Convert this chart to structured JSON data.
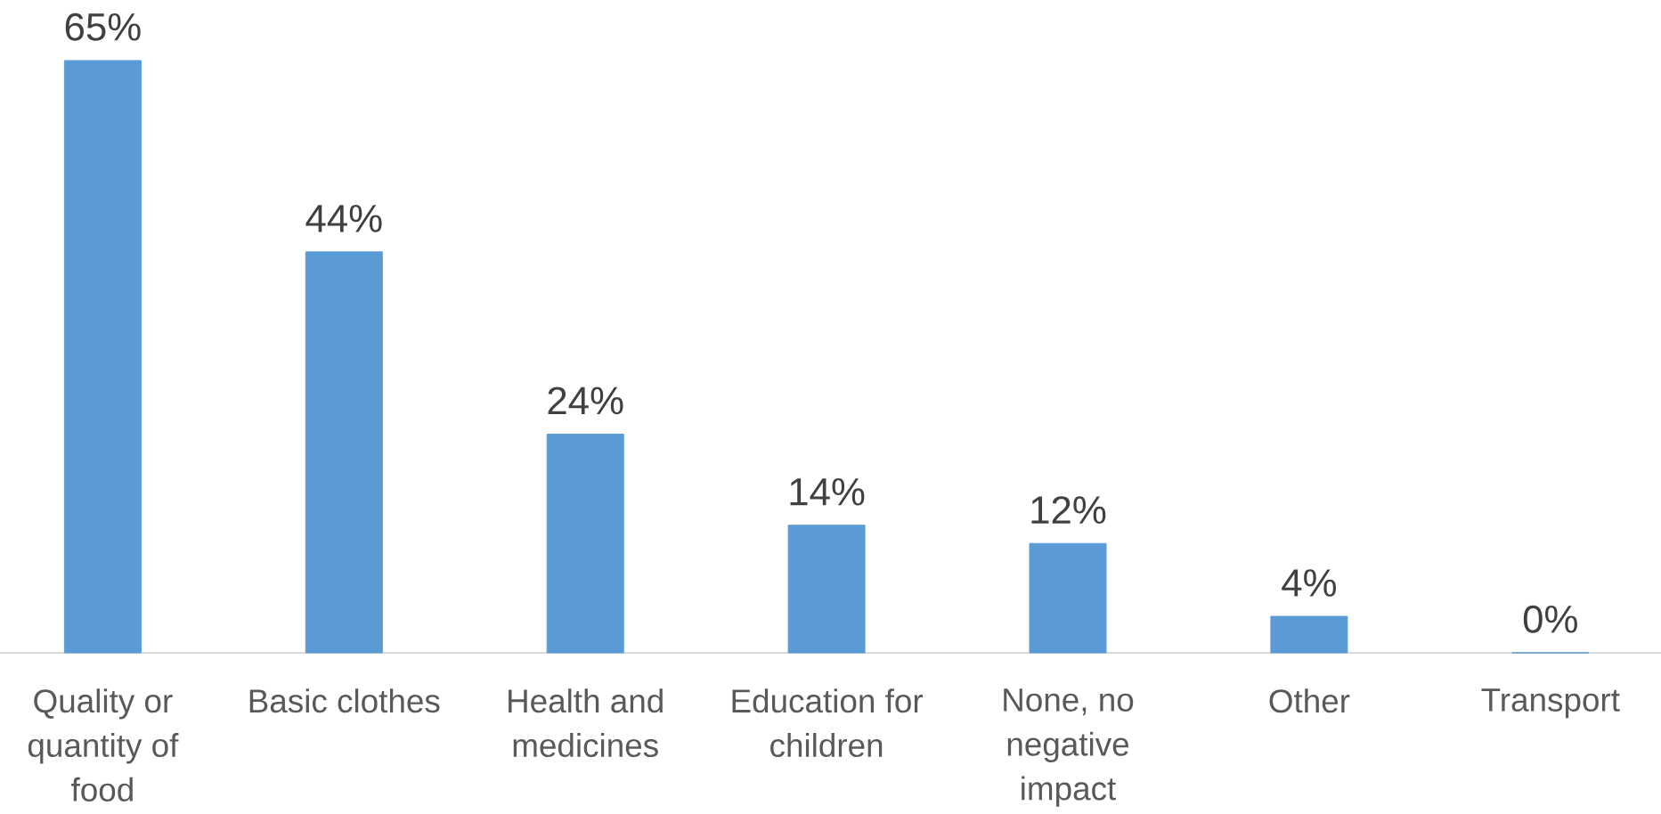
{
  "chart_data": {
    "type": "bar",
    "categories": [
      "Quality or quantity of food",
      "Basic clothes",
      "Health and medicines",
      "Education for children",
      "None, no negative impact",
      "Other",
      "Transport"
    ],
    "values": [
      65,
      44,
      24,
      14,
      12,
      4,
      0
    ],
    "value_labels": [
      "65%",
      "44%",
      "24%",
      "14%",
      "12%",
      "4%",
      "0%"
    ],
    "color": "#5b9bd5"
  }
}
